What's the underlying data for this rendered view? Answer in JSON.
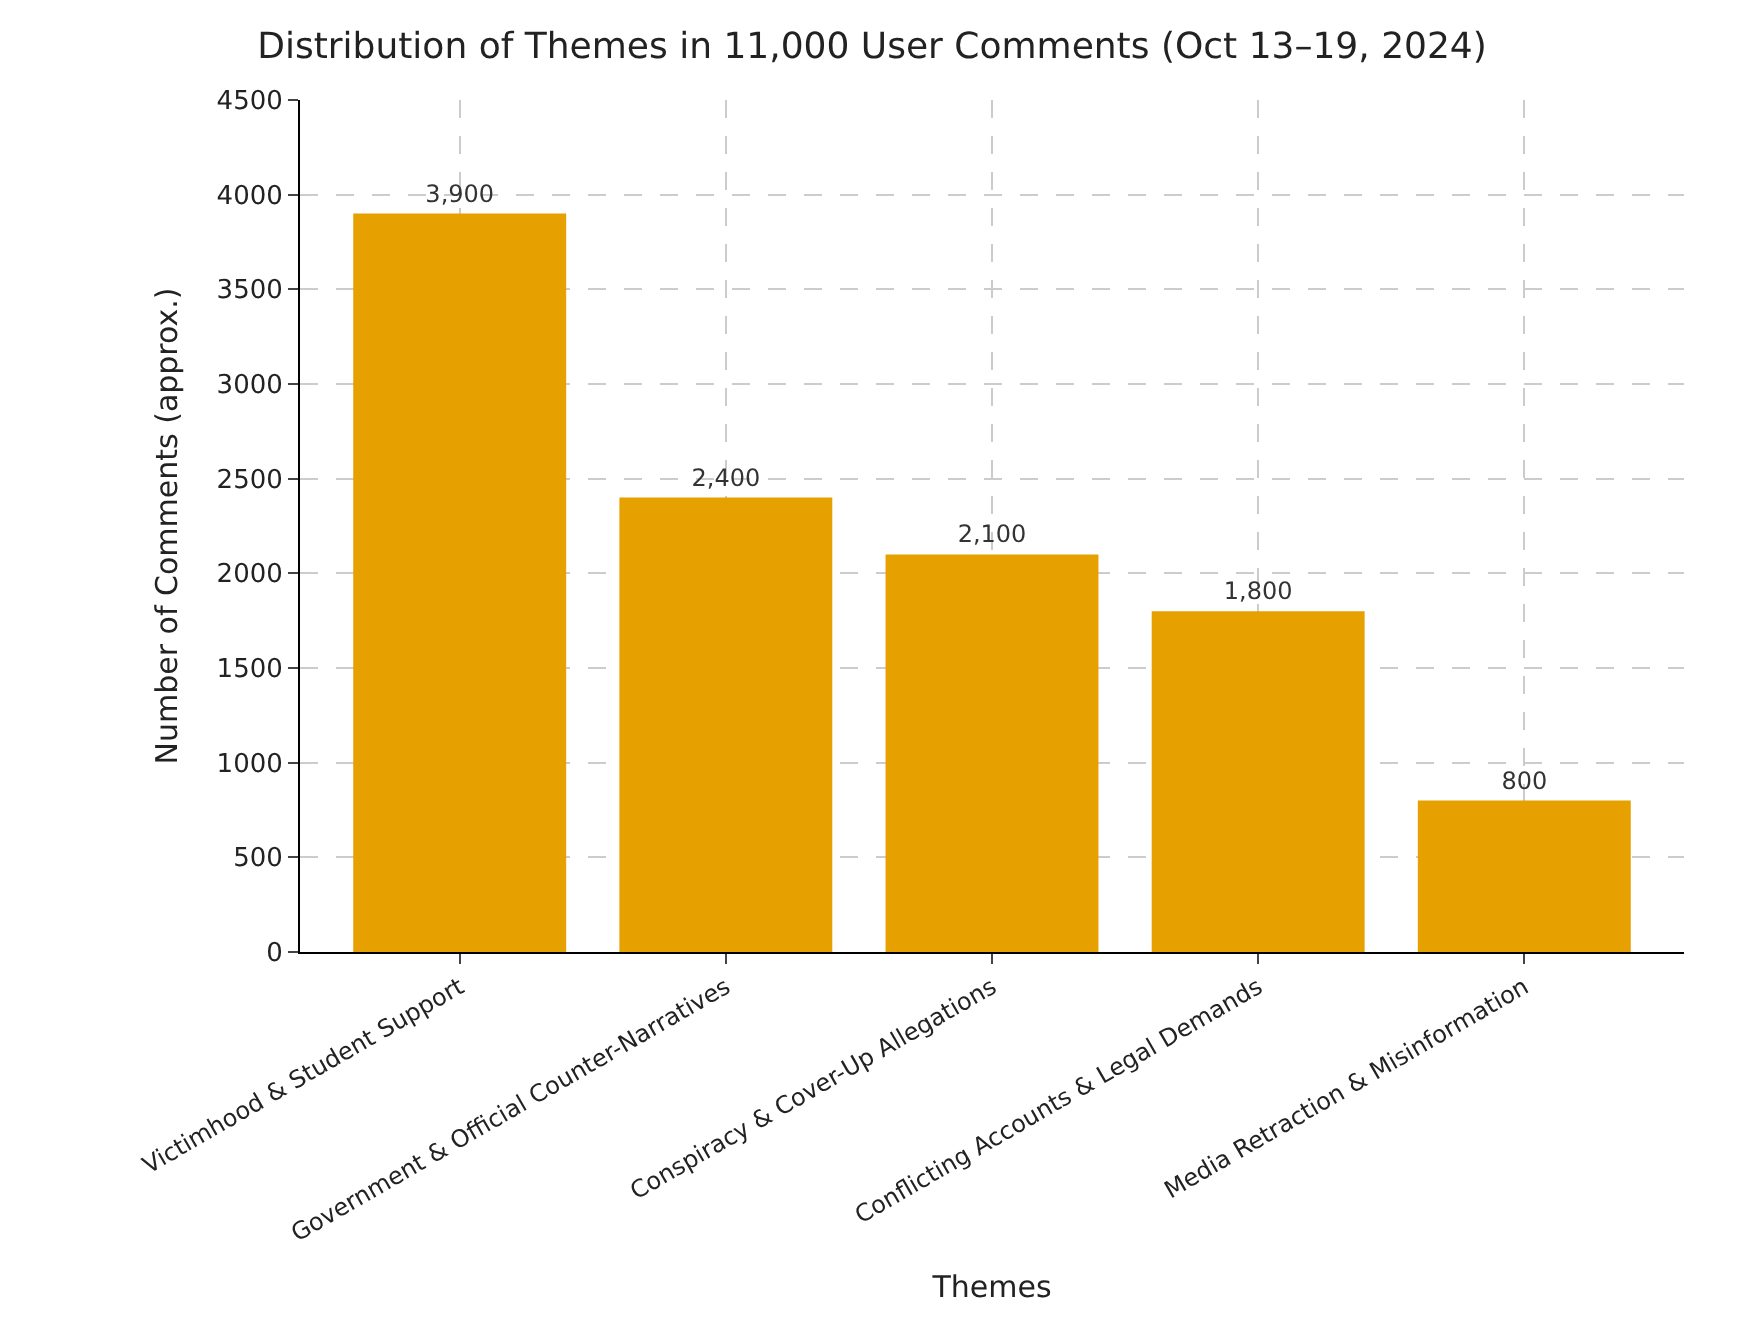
{
  "chart_data": {
    "type": "bar",
    "title": "Distribution of Themes in 11,000 User Comments (Oct 13–19, 2024)",
    "xlabel": "Themes",
    "ylabel": "Number of Comments (approx.)",
    "categories": [
      "Victimhood & Student Support",
      "Government & Official Counter-Narratives",
      "Conspiracy & Cover-Up Allegations",
      "Conflicting Accounts & Legal Demands",
      "Media Retraction & Misinformation"
    ],
    "values": [
      3900,
      2400,
      2100,
      1800,
      800
    ],
    "value_labels": [
      "3,900",
      "2,400",
      "2,100",
      "1,800",
      "800"
    ],
    "color": "#e6a000",
    "ylim": [
      0,
      4500
    ],
    "yticks": [
      0,
      500,
      1000,
      1500,
      2000,
      2500,
      3000,
      3500,
      4000,
      4500
    ],
    "grid": true
  }
}
